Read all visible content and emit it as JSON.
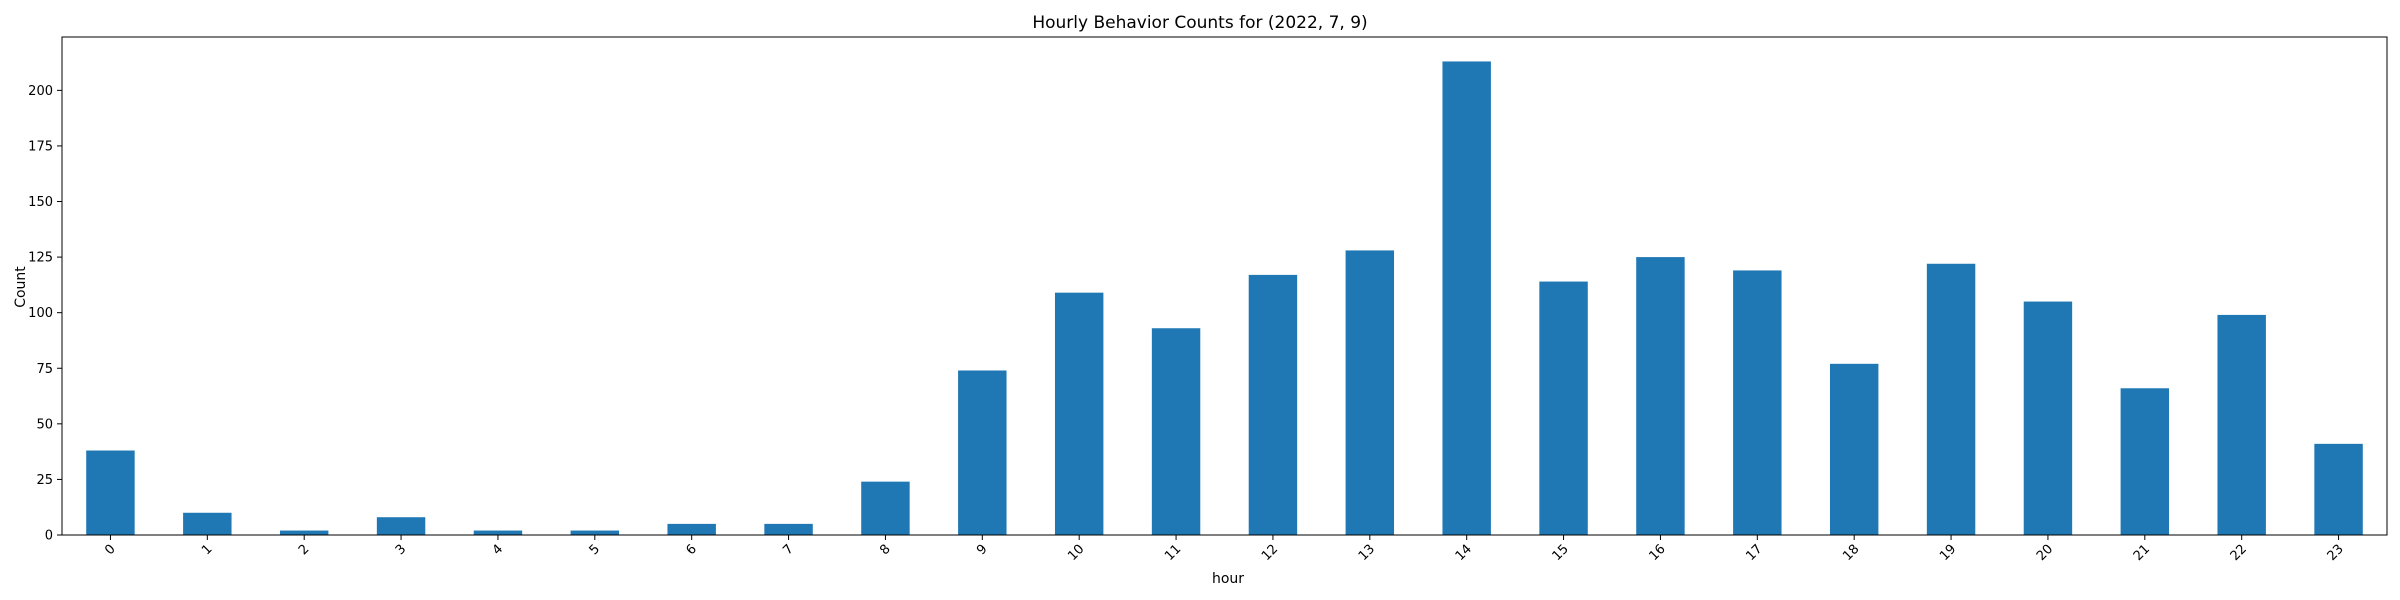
{
  "chart_data": {
    "type": "bar",
    "title": "Hourly Behavior Counts for (2022, 7, 9)",
    "xlabel": "hour",
    "ylabel": "Count",
    "categories": [
      "0",
      "1",
      "2",
      "3",
      "4",
      "5",
      "6",
      "7",
      "8",
      "9",
      "10",
      "11",
      "12",
      "13",
      "14",
      "15",
      "16",
      "17",
      "18",
      "19",
      "20",
      "21",
      "22",
      "23"
    ],
    "values": [
      38,
      10,
      2,
      8,
      2,
      2,
      5,
      5,
      24,
      74,
      109,
      93,
      117,
      128,
      213,
      114,
      125,
      119,
      77,
      122,
      105,
      66,
      99,
      41
    ],
    "ylim": [
      0,
      224
    ],
    "yticks": [
      0,
      25,
      50,
      75,
      100,
      125,
      150,
      175,
      200
    ],
    "grid": false,
    "bar_color": "#1f77b4",
    "xtick_rotation": -45
  }
}
